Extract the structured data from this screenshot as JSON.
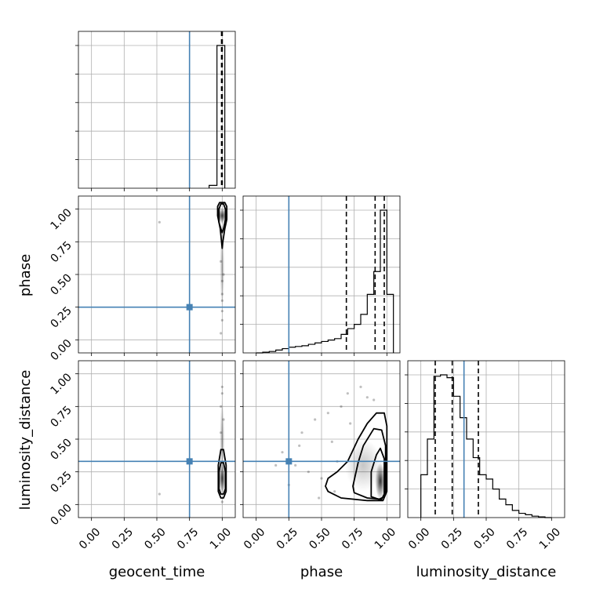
{
  "chart_data": {
    "type": "corner",
    "parameters": [
      "geocent_time",
      "phase",
      "luminosity_distance"
    ],
    "axis_labels": {
      "phase": "phase",
      "luminosity_distance": "luminosity_distance",
      "x_geocent_time": "geocent_time",
      "x_phase": "phase",
      "x_luminosity_distance": "luminosity_distance"
    },
    "axis_range": [
      -0.1,
      1.1
    ],
    "ticks": [
      0.0,
      0.25,
      0.5,
      0.75,
      1.0
    ],
    "tick_labels": [
      "0.00",
      "0.25",
      "0.50",
      "0.75",
      "1.00"
    ],
    "grid": true,
    "truths": {
      "geocent_time": 0.75,
      "phase": 0.25,
      "luminosity_distance": 0.33
    },
    "truth_color": "#4682b4",
    "contour_color": "#000000",
    "histograms": {
      "geocent_time": {
        "bin_edges": [
          0.9,
          0.96,
          0.99,
          1.02
        ],
        "counts": [
          0.02,
          1.0,
          1.0
        ],
        "quantiles": [
          0.995,
          1.0,
          1.0
        ]
      },
      "phase": {
        "bin_edges": [
          0.0,
          0.05,
          0.1,
          0.15,
          0.2,
          0.25,
          0.3,
          0.35,
          0.4,
          0.45,
          0.5,
          0.55,
          0.6,
          0.65,
          0.7,
          0.75,
          0.8,
          0.85,
          0.9,
          0.95,
          1.0,
          1.05
        ],
        "counts": [
          0.0,
          0.005,
          0.01,
          0.02,
          0.03,
          0.04,
          0.045,
          0.05,
          0.06,
          0.07,
          0.08,
          0.09,
          0.1,
          0.13,
          0.17,
          0.2,
          0.27,
          0.41,
          0.57,
          1.0,
          0.41
        ],
        "quantiles": [
          0.69,
          0.91,
          0.98
        ]
      },
      "luminosity_distance": {
        "bin_edges": [
          0.0,
          0.05,
          0.1,
          0.15,
          0.2,
          0.25,
          0.3,
          0.35,
          0.4,
          0.45,
          0.5,
          0.55,
          0.6,
          0.65,
          0.7,
          0.75,
          0.8,
          0.85,
          0.9,
          0.95,
          1.0
        ],
        "counts": [
          0.3,
          0.55,
          0.99,
          1.0,
          0.98,
          0.85,
          0.7,
          0.55,
          0.42,
          0.3,
          0.27,
          0.2,
          0.13,
          0.09,
          0.05,
          0.03,
          0.02,
          0.01,
          0.005,
          0.0
        ],
        "quantiles": [
          0.11,
          0.24,
          0.44
        ]
      }
    },
    "pairs": [
      {
        "x": "geocent_time",
        "y": "phase",
        "scatter": [
          [
            1.0,
            0.3
          ],
          [
            1.0,
            0.15
          ],
          [
            0.99,
            0.05
          ],
          [
            1.0,
            0.45
          ],
          [
            0.99,
            0.6
          ],
          [
            0.52,
            0.9
          ],
          [
            1.0,
            0.22
          ],
          [
            1.0,
            0.35
          ],
          [
            1.01,
            0.5
          ]
        ],
        "contours": [
          [
            [
              0.975,
              0.9
            ],
            [
              0.99,
              0.85
            ],
            [
              1.0,
              0.82
            ],
            [
              1.01,
              0.85
            ],
            [
              1.025,
              0.92
            ],
            [
              1.025,
              1.0
            ],
            [
              1.01,
              1.04
            ],
            [
              0.99,
              1.04
            ],
            [
              0.975,
              1.0
            ]
          ],
          [
            [
              0.985,
              0.85
            ],
            [
              0.995,
              0.75
            ],
            [
              1.0,
              0.7
            ],
            [
              1.005,
              0.75
            ],
            [
              1.02,
              0.85
            ],
            [
              1.035,
              0.92
            ],
            [
              1.035,
              1.02
            ],
            [
              1.02,
              1.05
            ],
            [
              0.98,
              1.05
            ],
            [
              0.965,
              1.02
            ],
            [
              0.965,
              0.95
            ]
          ]
        ],
        "density_blobs": [
          [
            1.0,
            0.95,
            0.045,
            0.06,
            0.8
          ],
          [
            1.0,
            0.55,
            0.015,
            0.3,
            0.35
          ]
        ]
      },
      {
        "x": "geocent_time",
        "y": "luminosity_distance",
        "scatter": [
          [
            1.0,
            0.85
          ],
          [
            0.99,
            0.75
          ],
          [
            1.01,
            0.65
          ],
          [
            1.0,
            0.02
          ],
          [
            0.52,
            0.08
          ],
          [
            1.0,
            0.9
          ],
          [
            0.99,
            0.55
          ]
        ],
        "contours": [
          [
            [
              0.975,
              0.12
            ],
            [
              0.99,
              0.08
            ],
            [
              1.01,
              0.08
            ],
            [
              1.025,
              0.12
            ],
            [
              1.025,
              0.25
            ],
            [
              1.01,
              0.32
            ],
            [
              0.99,
              0.32
            ],
            [
              0.975,
              0.25
            ]
          ],
          [
            [
              0.97,
              0.1
            ],
            [
              0.99,
              0.05
            ],
            [
              1.01,
              0.05
            ],
            [
              1.03,
              0.1
            ],
            [
              1.03,
              0.3
            ],
            [
              1.01,
              0.42
            ],
            [
              0.99,
              0.42
            ],
            [
              0.97,
              0.3
            ]
          ]
        ],
        "density_blobs": [
          [
            1.0,
            0.2,
            0.03,
            0.12,
            0.85
          ],
          [
            1.0,
            0.5,
            0.012,
            0.3,
            0.4
          ]
        ]
      },
      {
        "x": "phase",
        "y": "luminosity_distance",
        "scatter": [
          [
            0.3,
            0.3
          ],
          [
            0.35,
            0.55
          ],
          [
            0.45,
            0.65
          ],
          [
            0.5,
            0.2
          ],
          [
            0.55,
            0.7
          ],
          [
            0.6,
            0.1
          ],
          [
            0.65,
            0.75
          ],
          [
            0.7,
            0.85
          ],
          [
            0.4,
            0.25
          ],
          [
            0.25,
            0.15
          ],
          [
            0.2,
            0.4
          ],
          [
            0.8,
            0.9
          ],
          [
            0.85,
            0.82
          ],
          [
            0.9,
            0.8
          ],
          [
            0.15,
            0.3
          ],
          [
            0.58,
            0.48
          ],
          [
            0.72,
            0.62
          ],
          [
            0.33,
            0.45
          ],
          [
            0.48,
            0.05
          ],
          [
            0.62,
            0.33
          ]
        ],
        "contours": [
          [
            [
              0.88,
              0.06
            ],
            [
              0.94,
              0.04
            ],
            [
              0.98,
              0.06
            ],
            [
              0.98,
              0.35
            ],
            [
              0.95,
              0.43
            ],
            [
              0.92,
              0.38
            ],
            [
              0.88,
              0.25
            ]
          ],
          [
            [
              0.75,
              0.09
            ],
            [
              0.85,
              0.05
            ],
            [
              0.96,
              0.04
            ],
            [
              0.99,
              0.1
            ],
            [
              0.99,
              0.45
            ],
            [
              0.96,
              0.57
            ],
            [
              0.9,
              0.58
            ],
            [
              0.82,
              0.45
            ],
            [
              0.78,
              0.32
            ],
            [
              0.74,
              0.14
            ]
          ],
          [
            [
              0.55,
              0.1
            ],
            [
              0.65,
              0.05
            ],
            [
              0.85,
              0.03
            ],
            [
              0.97,
              0.03
            ],
            [
              1.0,
              0.1
            ],
            [
              1.0,
              0.6
            ],
            [
              0.98,
              0.7
            ],
            [
              0.92,
              0.7
            ],
            [
              0.85,
              0.62
            ],
            [
              0.78,
              0.5
            ],
            [
              0.7,
              0.33
            ],
            [
              0.62,
              0.25
            ],
            [
              0.55,
              0.2
            ],
            [
              0.53,
              0.14
            ]
          ]
        ],
        "density_blobs": [
          [
            0.95,
            0.18,
            0.04,
            0.14,
            0.9
          ],
          [
            0.82,
            0.3,
            0.14,
            0.2,
            0.25
          ]
        ]
      }
    ]
  }
}
